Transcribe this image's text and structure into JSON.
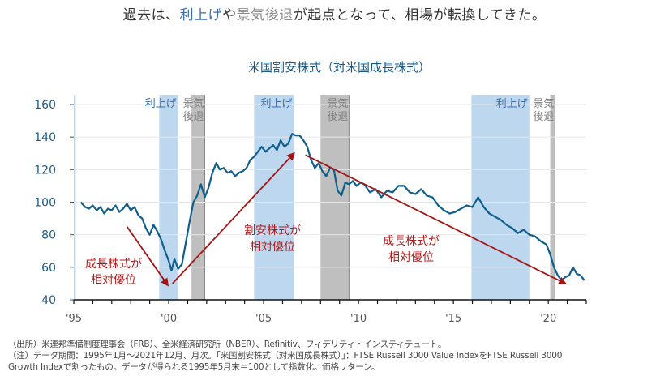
{
  "headline": {
    "part1": "過去は、",
    "rate_hike": "利上げ",
    "mid": "や",
    "recession": "景気後退",
    "part2": "が起点となって、相場が転換してきた。"
  },
  "colors": {
    "line": "#0e5f8c",
    "rate_hike_band": "#bdd7ee",
    "recession_band": "#bfbfbf",
    "arrow": "#a31515",
    "axis_text": "#1c5a86"
  },
  "chart_data": {
    "type": "line",
    "title": "米国割安株式（対米国成長株式）",
    "xlabel": "",
    "ylabel": "",
    "ylim": [
      40,
      160
    ],
    "xlim": [
      1995.0,
      2022.0
    ],
    "yticks": [
      40,
      60,
      80,
      100,
      120,
      140,
      160
    ],
    "xticks": [
      {
        "value": 1995,
        "label": "'95"
      },
      {
        "value": 2000,
        "label": "'00"
      },
      {
        "value": 2005,
        "label": "'05"
      },
      {
        "value": 2010,
        "label": "'10"
      },
      {
        "value": 2015,
        "label": "'15"
      },
      {
        "value": 2020,
        "label": "'20"
      }
    ],
    "grid": true,
    "series": [
      {
        "name": "米国割安株式（対米国成長株式）",
        "x": [
          1995.37,
          1995.6,
          1995.8,
          1996.0,
          1996.2,
          1996.4,
          1996.6,
          1996.8,
          1997.0,
          1997.2,
          1997.4,
          1997.6,
          1997.8,
          1998.0,
          1998.2,
          1998.4,
          1998.6,
          1998.8,
          1999.0,
          1999.2,
          1999.4,
          1999.6,
          1999.8,
          2000.0,
          2000.15,
          2000.3,
          2000.5,
          2000.7,
          2000.9,
          2001.1,
          2001.3,
          2001.5,
          2001.7,
          2001.9,
          2002.1,
          2002.3,
          2002.5,
          2002.7,
          2002.9,
          2003.1,
          2003.3,
          2003.5,
          2003.7,
          2003.9,
          2004.1,
          2004.3,
          2004.5,
          2004.7,
          2004.9,
          2005.1,
          2005.3,
          2005.5,
          2005.7,
          2005.9,
          2006.1,
          2006.3,
          2006.5,
          2006.7,
          2006.9,
          2007.1,
          2007.3,
          2007.5,
          2007.7,
          2007.9,
          2008.1,
          2008.3,
          2008.5,
          2008.7,
          2008.9,
          2009.1,
          2009.3,
          2009.5,
          2009.7,
          2009.9,
          2010.1,
          2010.3,
          2010.6,
          2010.9,
          2011.2,
          2011.5,
          2011.8,
          2012.1,
          2012.4,
          2012.7,
          2013.0,
          2013.3,
          2013.6,
          2013.9,
          2014.2,
          2014.5,
          2014.8,
          2015.1,
          2015.4,
          2015.7,
          2016.0,
          2016.3,
          2016.6,
          2016.9,
          2017.2,
          2017.5,
          2017.8,
          2018.1,
          2018.4,
          2018.7,
          2019.0,
          2019.3,
          2019.6,
          2019.9,
          2020.1,
          2020.3,
          2020.5,
          2020.7,
          2020.9,
          2021.1,
          2021.3,
          2021.5,
          2021.7,
          2021.9
        ],
        "values": [
          100,
          97,
          96,
          98,
          95,
          97,
          93,
          96,
          95,
          98,
          94,
          96,
          99,
          95,
          97,
          92,
          90,
          84,
          80,
          86,
          82,
          77,
          70,
          64,
          58,
          65,
          59,
          62,
          75,
          88,
          100,
          104,
          111,
          103,
          109,
          118,
          124,
          120,
          121,
          118,
          119,
          116,
          118,
          119,
          121,
          126,
          128,
          131,
          134,
          131,
          133,
          135,
          132,
          138,
          134,
          136,
          142,
          141,
          141,
          138,
          134,
          126,
          121,
          124,
          119,
          116,
          121,
          120,
          107,
          104,
          112,
          111,
          113,
          110,
          112,
          111,
          106,
          108,
          103,
          107,
          106,
          110,
          110,
          106,
          105,
          108,
          104,
          103,
          98,
          95,
          93,
          94,
          96,
          98,
          97,
          103,
          97,
          93,
          91,
          89,
          86,
          84,
          81,
          83,
          80,
          79,
          76,
          74,
          68,
          60,
          55,
          52,
          54,
          55,
          60,
          56,
          55,
          52
        ]
      }
    ],
    "bands": [
      {
        "type": "rate_hike",
        "label": "",
        "start": 1995.0,
        "end": 1995.1
      },
      {
        "type": "rate_hike",
        "label": "利上げ",
        "start": 1999.5,
        "end": 2000.5
      },
      {
        "type": "recession",
        "label": "景気後退",
        "start": 2001.2,
        "end": 2001.9
      },
      {
        "type": "rate_hike",
        "label": "利上げ",
        "start": 2004.5,
        "end": 2006.6
      },
      {
        "type": "recession",
        "label": "景気後退",
        "start": 2008.0,
        "end": 2009.5
      },
      {
        "type": "rate_hike",
        "label": "利上げ",
        "start": 2015.95,
        "end": 2019.0
      },
      {
        "type": "recession",
        "label": "景気後退",
        "start": 2020.1,
        "end": 2020.35
      }
    ],
    "annotations": [
      {
        "text_line1": "成長株式が",
        "text_line2": "相対優位",
        "arrow_from": [
          1997.8,
          85
        ],
        "arrow_to": [
          1999.95,
          49
        ]
      },
      {
        "text_line1": "割安株式が",
        "text_line2": "相対優位",
        "arrow_from": [
          2000.2,
          50
        ],
        "arrow_to": [
          2006.6,
          130
        ]
      },
      {
        "text_line1": "成長株式が",
        "text_line2": "相対優位",
        "arrow_from": [
          2007.2,
          129
        ],
        "arrow_to": [
          2020.9,
          50
        ]
      }
    ]
  },
  "notes": {
    "line1": "（出所）米連邦準備制度理事会（FRB）、全米経済研究所（NBER）、Refinitiv、フィデリティ・インスティテュート。",
    "line2": "（注）データ期間：1995年1月～2021年12月、月次。「米国割安株式（対米国成長株式）」：FTSE Russell 3000 Value IndexをFTSE Russell 3000",
    "line3": "Growth Indexで割ったもの。データが得られる1995年5月末＝100として指数化。価格リターン。"
  }
}
